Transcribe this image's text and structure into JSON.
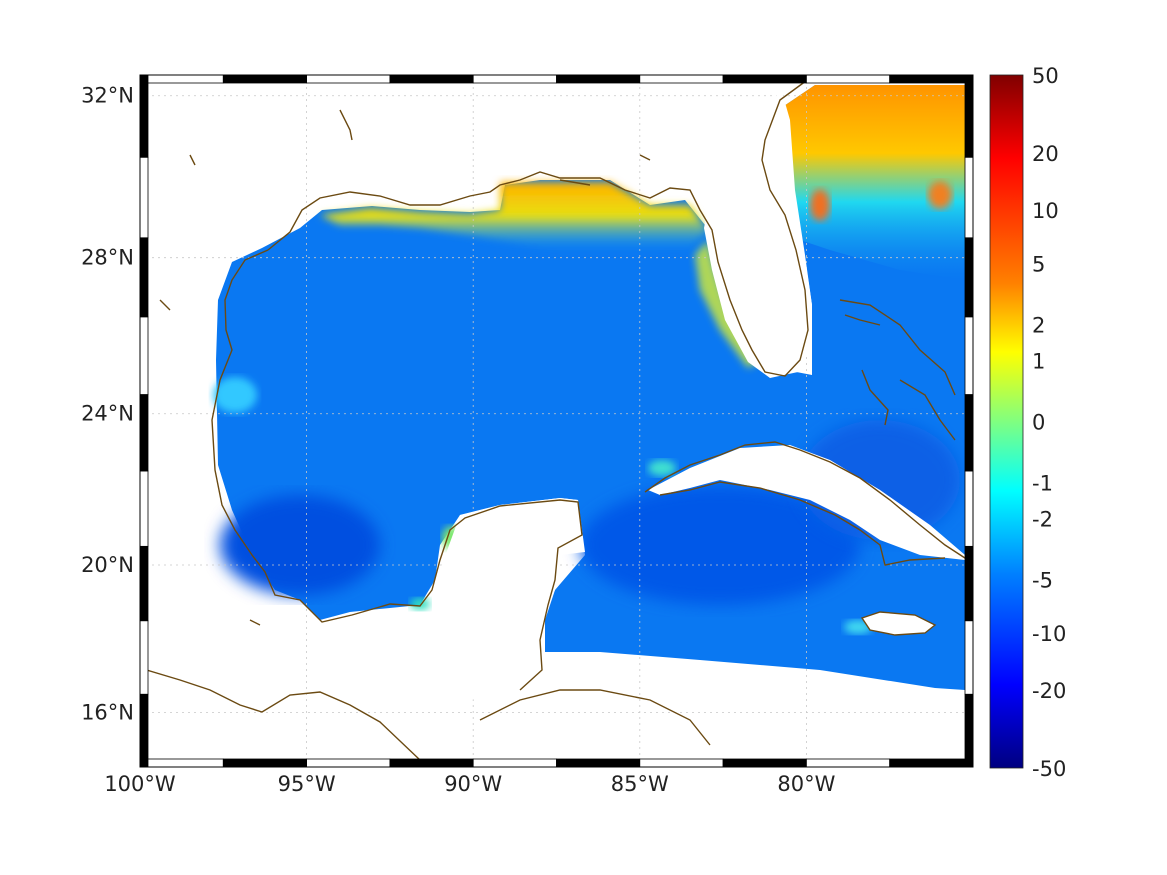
{
  "map": {
    "projection": "mercator",
    "lon_range": [
      -100,
      -75
    ],
    "lat_range": [
      14.5,
      32.5
    ],
    "x_ticks": [
      {
        "lon": -100,
        "label": "100°W"
      },
      {
        "lon": -95,
        "label": "95°W"
      },
      {
        "lon": -90,
        "label": "90°W"
      },
      {
        "lon": -85,
        "label": "85°W"
      },
      {
        "lon": -80,
        "label": "80°W"
      }
    ],
    "y_ticks": [
      {
        "lat": 32,
        "label": "32°N"
      },
      {
        "lat": 28,
        "label": "28°N"
      },
      {
        "lat": 24,
        "label": "24°N"
      },
      {
        "lat": 20,
        "label": "20°N"
      },
      {
        "lat": 16,
        "label": "16°N"
      }
    ],
    "grid": true,
    "colormap": "jet",
    "coastline_color": "#6b4a12"
  },
  "colorbar": {
    "labels": [
      "50",
      "20",
      "10",
      "5",
      "2",
      "1",
      "0",
      "-1",
      "-2",
      "-5",
      "-10",
      "-20",
      "-50"
    ],
    "placement": "right",
    "colors_top_to_bottom": [
      "#800000",
      "#ff0000",
      "#ff8000",
      "#ffff00",
      "#80ff80",
      "#00ffff",
      "#0080ff",
      "#0000ff",
      "#000080"
    ]
  }
}
